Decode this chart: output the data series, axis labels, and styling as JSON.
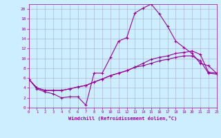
{
  "xlabel": "Windchill (Refroidissement éolien,°C)",
  "background_color": "#cceeff",
  "line_color": "#990099",
  "xlim": [
    0,
    23
  ],
  "ylim": [
    0,
    21
  ],
  "xticks": [
    0,
    1,
    2,
    3,
    4,
    5,
    6,
    7,
    8,
    9,
    10,
    11,
    12,
    13,
    14,
    15,
    16,
    17,
    18,
    19,
    20,
    21,
    22,
    23
  ],
  "yticks": [
    0,
    2,
    4,
    6,
    8,
    10,
    12,
    14,
    16,
    18,
    20
  ],
  "series1_x": [
    0,
    1,
    2,
    3,
    4,
    5,
    6,
    7,
    8,
    9,
    10,
    11,
    12,
    13,
    14,
    15,
    16,
    17,
    18,
    19,
    20,
    21,
    22,
    23
  ],
  "series1_y": [
    5.8,
    3.8,
    3.2,
    2.8,
    2.0,
    2.2,
    2.2,
    0.5,
    7.0,
    7.0,
    10.2,
    13.5,
    14.2,
    19.2,
    20.2,
    21.0,
    19.0,
    16.5,
    13.5,
    12.2,
    11.0,
    9.0,
    8.5,
    7.0
  ],
  "series2_x": [
    0,
    1,
    2,
    3,
    4,
    5,
    6,
    7,
    8,
    9,
    10,
    11,
    12,
    13,
    14,
    15,
    16,
    17,
    18,
    19,
    20,
    21,
    22,
    23
  ],
  "series2_y": [
    5.8,
    4.0,
    3.5,
    3.5,
    3.5,
    3.8,
    4.2,
    4.5,
    5.2,
    5.8,
    6.5,
    7.0,
    7.5,
    8.2,
    9.0,
    9.8,
    10.2,
    10.5,
    11.0,
    11.2,
    11.5,
    10.8,
    7.2,
    7.0
  ],
  "series3_x": [
    0,
    1,
    2,
    3,
    4,
    5,
    6,
    7,
    8,
    9,
    10,
    11,
    12,
    13,
    14,
    15,
    16,
    17,
    18,
    19,
    20,
    21,
    22,
    23
  ],
  "series3_y": [
    5.8,
    4.0,
    3.5,
    3.5,
    3.5,
    3.8,
    4.2,
    4.5,
    5.2,
    5.8,
    6.5,
    7.0,
    7.5,
    8.2,
    8.5,
    9.0,
    9.5,
    9.8,
    10.2,
    10.5,
    10.5,
    9.5,
    7.0,
    6.8
  ]
}
